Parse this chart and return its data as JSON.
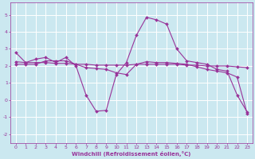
{
  "xlabel": "Windchill (Refroidissement éolien,°C)",
  "background_color": "#cbe8f0",
  "grid_color": "#ffffff",
  "line_color": "#993399",
  "xlim": [
    -0.5,
    23.5
  ],
  "ylim": [
    -2.5,
    5.7
  ],
  "yticks": [
    -2,
    -1,
    0,
    1,
    2,
    3,
    4,
    5
  ],
  "xticks": [
    0,
    1,
    2,
    3,
    4,
    5,
    6,
    7,
    8,
    9,
    10,
    11,
    12,
    13,
    14,
    15,
    16,
    17,
    18,
    19,
    20,
    21,
    22,
    23
  ],
  "line1_x": [
    0,
    1,
    2,
    3,
    4,
    5,
    6,
    7,
    8,
    9,
    10,
    11,
    12,
    13,
    14,
    15,
    16,
    17,
    18,
    19,
    20,
    21,
    22,
    23
  ],
  "line1_y": [
    2.8,
    2.2,
    2.4,
    2.5,
    2.2,
    2.5,
    2.0,
    0.3,
    -0.65,
    -0.6,
    1.5,
    2.2,
    3.8,
    4.85,
    4.7,
    4.45,
    3.0,
    2.3,
    2.2,
    2.1,
    1.8,
    1.7,
    0.3,
    -0.7
  ],
  "line2_x": [
    0,
    1,
    2,
    3,
    4,
    5,
    6,
    7,
    8,
    9,
    10,
    11,
    12,
    13,
    14,
    15,
    16,
    17,
    18,
    19,
    20,
    21,
    22,
    23
  ],
  "line2_y": [
    2.25,
    2.2,
    2.2,
    2.2,
    2.15,
    2.15,
    2.1,
    2.1,
    2.05,
    2.05,
    2.05,
    2.05,
    2.1,
    2.1,
    2.1,
    2.1,
    2.1,
    2.05,
    2.05,
    2.0,
    2.0,
    2.0,
    1.95,
    1.9
  ],
  "line3_x": [
    0,
    1,
    2,
    3,
    4,
    5,
    6,
    7,
    8,
    9,
    10,
    11,
    12,
    13,
    14,
    15,
    16,
    17,
    18,
    19,
    20,
    21,
    22,
    23
  ],
  "line3_y": [
    2.1,
    2.1,
    2.1,
    2.3,
    2.3,
    2.3,
    2.1,
    1.9,
    1.85,
    1.8,
    1.6,
    1.5,
    2.1,
    2.25,
    2.2,
    2.2,
    2.15,
    2.1,
    1.95,
    1.8,
    1.7,
    1.6,
    1.35,
    -0.8
  ]
}
